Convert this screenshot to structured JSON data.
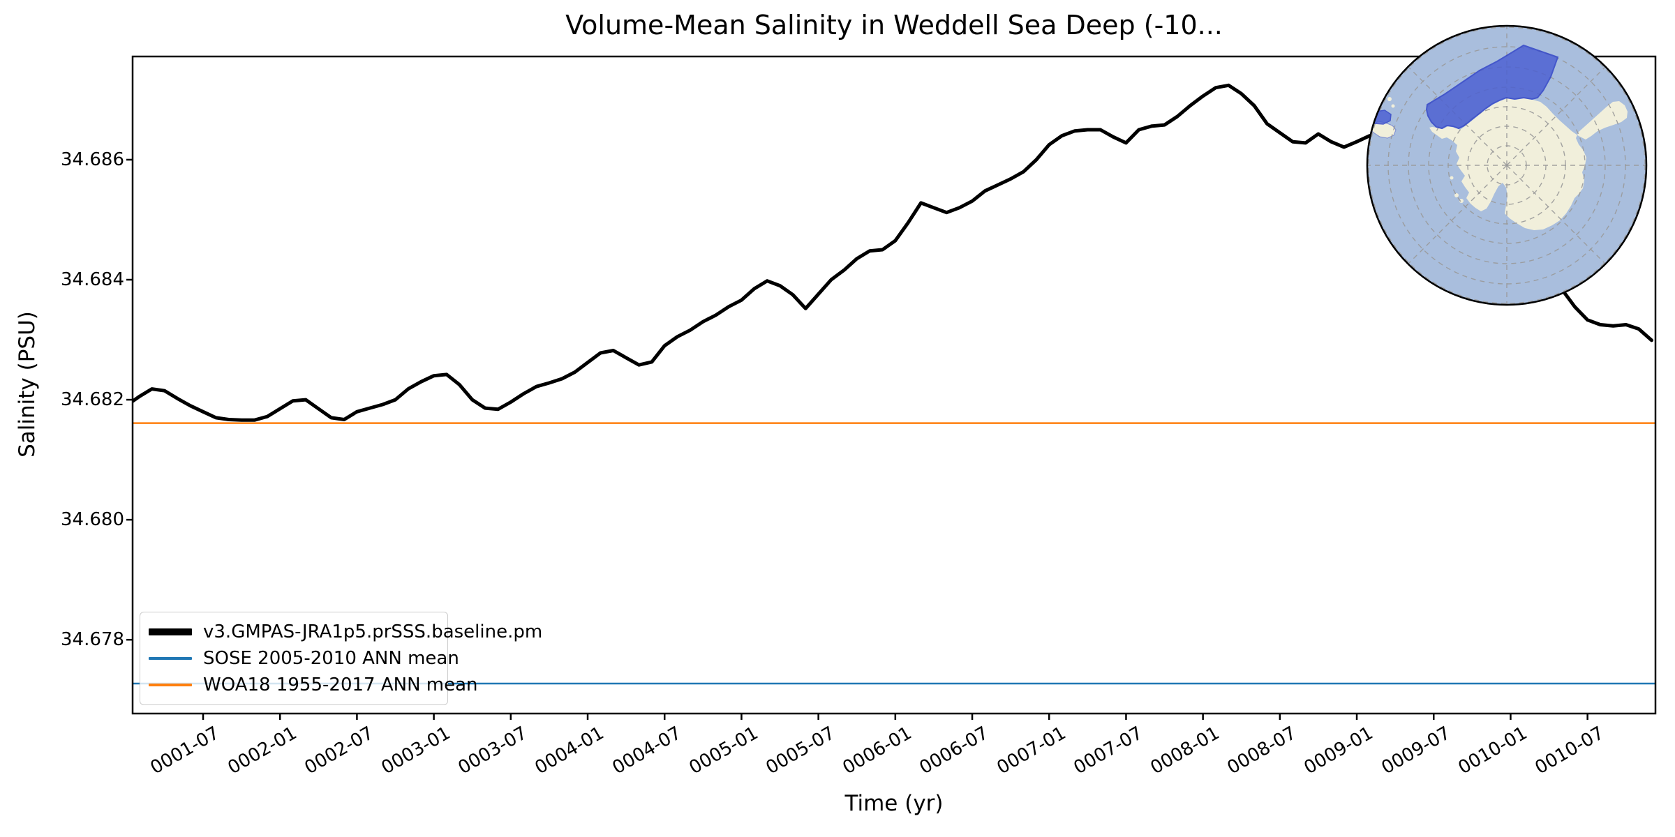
{
  "title": "Volume-Mean Salinity in Weddell Sea Deep (-10...",
  "chart_data": {
    "type": "line",
    "title": "Volume-Mean Salinity in Weddell Sea Deep (-10...",
    "xlabel": "Time (yr)",
    "ylabel": "Salinity (PSU)",
    "grid": false,
    "legend_position": "lower left",
    "x_unit": "simulation months, 1 = 0001-01, monthly cadence",
    "xlim": [
      1.5,
      120.3
    ],
    "ylim": [
      34.67677,
      34.68772
    ],
    "x_ticks": [
      {
        "t": 7,
        "label": "0001-07"
      },
      {
        "t": 13,
        "label": "0002-01"
      },
      {
        "t": 19,
        "label": "0002-07"
      },
      {
        "t": 25,
        "label": "0003-01"
      },
      {
        "t": 31,
        "label": "0003-07"
      },
      {
        "t": 37,
        "label": "0004-01"
      },
      {
        "t": 43,
        "label": "0004-07"
      },
      {
        "t": 49,
        "label": "0005-01"
      },
      {
        "t": 55,
        "label": "0005-07"
      },
      {
        "t": 61,
        "label": "0006-01"
      },
      {
        "t": 67,
        "label": "0006-07"
      },
      {
        "t": 73,
        "label": "0007-01"
      },
      {
        "t": 79,
        "label": "0007-07"
      },
      {
        "t": 85,
        "label": "0008-01"
      },
      {
        "t": 91,
        "label": "0008-07"
      },
      {
        "t": 97,
        "label": "0009-01"
      },
      {
        "t": 103,
        "label": "0009-07"
      },
      {
        "t": 109,
        "label": "0010-01"
      },
      {
        "t": 115,
        "label": "0010-07"
      }
    ],
    "y_ticks": [
      {
        "v": 34.678,
        "label": "34.678"
      },
      {
        "v": 34.68,
        "label": "34.680"
      },
      {
        "v": 34.682,
        "label": "34.682"
      },
      {
        "v": 34.684,
        "label": "34.684"
      },
      {
        "v": 34.686,
        "label": "34.686"
      }
    ],
    "series": [
      {
        "name": "v3.GMPAS-JRA1p5.prSSS.baseline.pm",
        "type": "line",
        "color": "#000000",
        "linewidth": 5,
        "x0": 1,
        "dx": 1,
        "y": [
          34.6819,
          34.68205,
          34.68218,
          34.68215,
          34.68202,
          34.6819,
          34.6818,
          34.6817,
          34.68167,
          34.68166,
          34.68166,
          34.68172,
          34.68185,
          34.68198,
          34.682,
          34.68185,
          34.6817,
          34.68167,
          34.6818,
          34.68186,
          34.68192,
          34.682,
          34.68218,
          34.6823,
          34.6824,
          34.68242,
          34.68225,
          34.682,
          34.68186,
          34.68184,
          34.68196,
          34.6821,
          34.68222,
          34.68228,
          34.68235,
          34.68246,
          34.68262,
          34.68278,
          34.68282,
          34.6827,
          34.68258,
          34.68263,
          34.6829,
          34.68305,
          34.68316,
          34.6833,
          34.68341,
          34.68355,
          34.68366,
          34.68385,
          34.68398,
          34.6839,
          34.68375,
          34.68352,
          34.68376,
          34.684,
          34.68416,
          34.68435,
          34.68448,
          34.6845,
          34.68465,
          34.68495,
          34.68528,
          34.6852,
          34.68512,
          34.6852,
          34.68531,
          34.68548,
          34.68558,
          34.68568,
          34.6858,
          34.686,
          34.68625,
          34.6864,
          34.68648,
          34.6865,
          34.6865,
          34.68638,
          34.68628,
          34.6865,
          34.68656,
          34.68658,
          34.68672,
          34.6869,
          34.68706,
          34.6872,
          34.68724,
          34.6871,
          34.6869,
          34.6866,
          34.68645,
          34.6863,
          34.68628,
          34.68643,
          34.6863,
          34.68621,
          34.6863,
          34.6864,
          34.68626,
          34.68614,
          34.68592,
          34.68575,
          34.68552,
          34.6854,
          34.68516,
          34.685,
          34.6848,
          34.68462,
          34.68445,
          34.6843,
          34.68415,
          34.684,
          34.68384,
          34.68355,
          34.68333,
          34.68325,
          34.68323,
          34.68325,
          34.68318,
          34.68299
        ]
      },
      {
        "name": "SOSE 2005-2010 ANN mean",
        "type": "hline",
        "color": "#1f77b4",
        "linewidth": 2.5,
        "value": 34.67727
      },
      {
        "name": "WOA18 1955-2017 ANN mean",
        "type": "hline",
        "color": "#ff7f0e",
        "linewidth": 2.5,
        "value": 34.68161
      }
    ]
  },
  "inset_map": {
    "description": "South polar stereographic inset map with Weddell Sea region highlighted",
    "ocean_color": "#a9bedd",
    "land_color": "#f1efdb",
    "region_color": "#4a5ed2",
    "region_border_color": "#2e41c7",
    "graticule_color": "#999999",
    "outline_color": "#000000"
  }
}
